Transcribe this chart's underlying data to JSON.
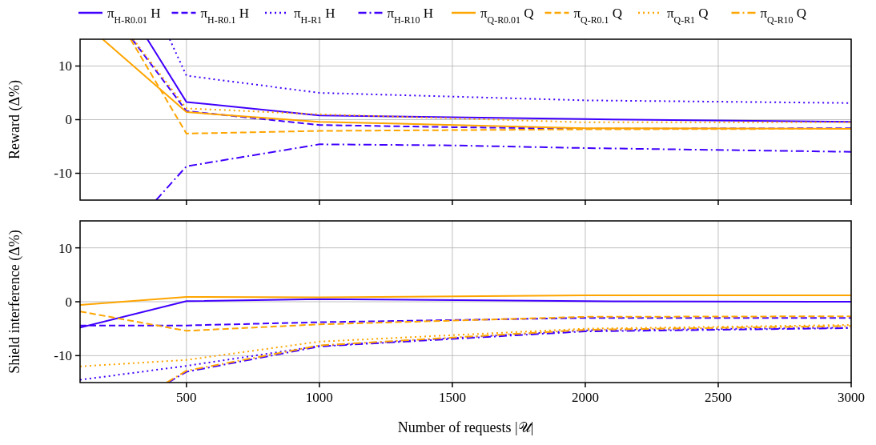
{
  "chart_data": [
    {
      "type": "line",
      "ylabel": "Reward (Δ%)",
      "xlim": [
        100,
        3000
      ],
      "ylim": [
        -15,
        15
      ],
      "xticks": [
        500,
        1000,
        1500,
        2000,
        2500,
        3000
      ],
      "yticks": [
        -10,
        0,
        10
      ],
      "grid": true,
      "legend": "top",
      "tick_labels": "y",
      "series": [
        {
          "name": "π$_{H-R0.01}$ H",
          "color": "#4000ff",
          "line_style": "solid",
          "x": [
            353,
            500,
            1000,
            2000,
            3000
          ],
          "values": [
            15,
            3.3,
            0.8,
            0.1,
            -0.4
          ]
        },
        {
          "name": "π$_{H-R0.1}$ H",
          "color": "#4000ff",
          "line_style": "dashed",
          "x": [
            296,
            500,
            1000,
            1500,
            2000,
            3000
          ],
          "values": [
            15,
            1.6,
            -1.0,
            -1.4,
            -1.7,
            -1.6
          ]
        },
        {
          "name": "π$_{H-R1}$ H",
          "color": "#4000ff",
          "line_style": "dotted",
          "x": [
            437,
            500,
            1000,
            2000,
            3000
          ],
          "values": [
            15,
            8.2,
            5.0,
            3.6,
            3.1
          ]
        },
        {
          "name": "π$_{H-R10}$ H",
          "color": "#4000ff",
          "line_style": "dashdot",
          "x": [
            386,
            500,
            1000,
            1500,
            2000,
            3000
          ],
          "values": [
            -15,
            -8.7,
            -4.6,
            -4.8,
            -5.3,
            -6.0
          ]
        },
        {
          "name": "π$_{Q-R0.01}$ Q",
          "color": "#ffa500",
          "line_style": "solid",
          "x": [
            185,
            500,
            1000,
            2000,
            3000
          ],
          "values": [
            15,
            1.4,
            -0.4,
            -1.6,
            -1.7
          ]
        },
        {
          "name": "π$_{Q-R0.1}$ Q",
          "color": "#ffa500",
          "line_style": "dashed",
          "x": [
            290,
            500,
            1000,
            2000,
            3000
          ],
          "values": [
            15,
            -2.6,
            -2.1,
            -1.8,
            -1.7
          ]
        },
        {
          "name": "π$_{Q-R1}$ Q",
          "color": "#ffa500",
          "line_style": "dotted",
          "x": [
            300,
            500,
            1000,
            2000,
            3000
          ],
          "values": [
            15,
            2.1,
            1.0,
            -0.5,
            -0.5
          ]
        },
        {
          "name": "π$_{Q-R10}$ Q",
          "color": "#ffa500",
          "line_style": "dashdot"
        }
      ]
    },
    {
      "type": "line",
      "xlabel": "Number of requests |𝒰|",
      "ylabel": "Shield interference (Δ%)",
      "xlim": [
        100,
        3000
      ],
      "ylim": [
        -15,
        15
      ],
      "xticks": [
        500,
        1000,
        1500,
        2000,
        2500,
        3000
      ],
      "yticks": [
        -10,
        0,
        10
      ],
      "grid": true,
      "x": [
        100,
        500,
        1000,
        2000,
        3000
      ],
      "series": [
        {
          "color": "#4000ff",
          "line_style": "solid",
          "values": [
            -4.8,
            0.1,
            0.5,
            0.1,
            0.0
          ]
        },
        {
          "color": "#4000ff",
          "line_style": "dashed",
          "values": [
            -4.4,
            -4.4,
            -3.8,
            -3.0,
            -3.0
          ]
        },
        {
          "color": "#4000ff",
          "line_style": "dotted",
          "values": [
            -14.5,
            -11.9,
            -8.2,
            -5.3,
            -4.8
          ]
        },
        {
          "color": "#4000ff",
          "line_style": "dashdot",
          "x": [
            431,
            500,
            1000,
            2000,
            3000
          ],
          "values": [
            -15,
            -13.0,
            -8.3,
            -5.5,
            -4.9
          ]
        },
        {
          "color": "#ffa500",
          "line_style": "solid",
          "values": [
            -0.6,
            0.9,
            0.8,
            1.2,
            1.2
          ]
        },
        {
          "color": "#ffa500",
          "line_style": "dashed",
          "values": [
            -1.8,
            -5.4,
            -4.2,
            -2.8,
            -2.7
          ]
        },
        {
          "color": "#ffa500",
          "line_style": "dotted",
          "values": [
            -12.0,
            -10.8,
            -7.4,
            -5.0,
            -4.3
          ]
        },
        {
          "color": "#ffa500",
          "line_style": "dashdot",
          "x": [
            425,
            500,
            1000,
            2000,
            3000
          ],
          "values": [
            -15,
            -12.8,
            -8.1,
            -5.2,
            -4.5
          ]
        }
      ]
    }
  ]
}
